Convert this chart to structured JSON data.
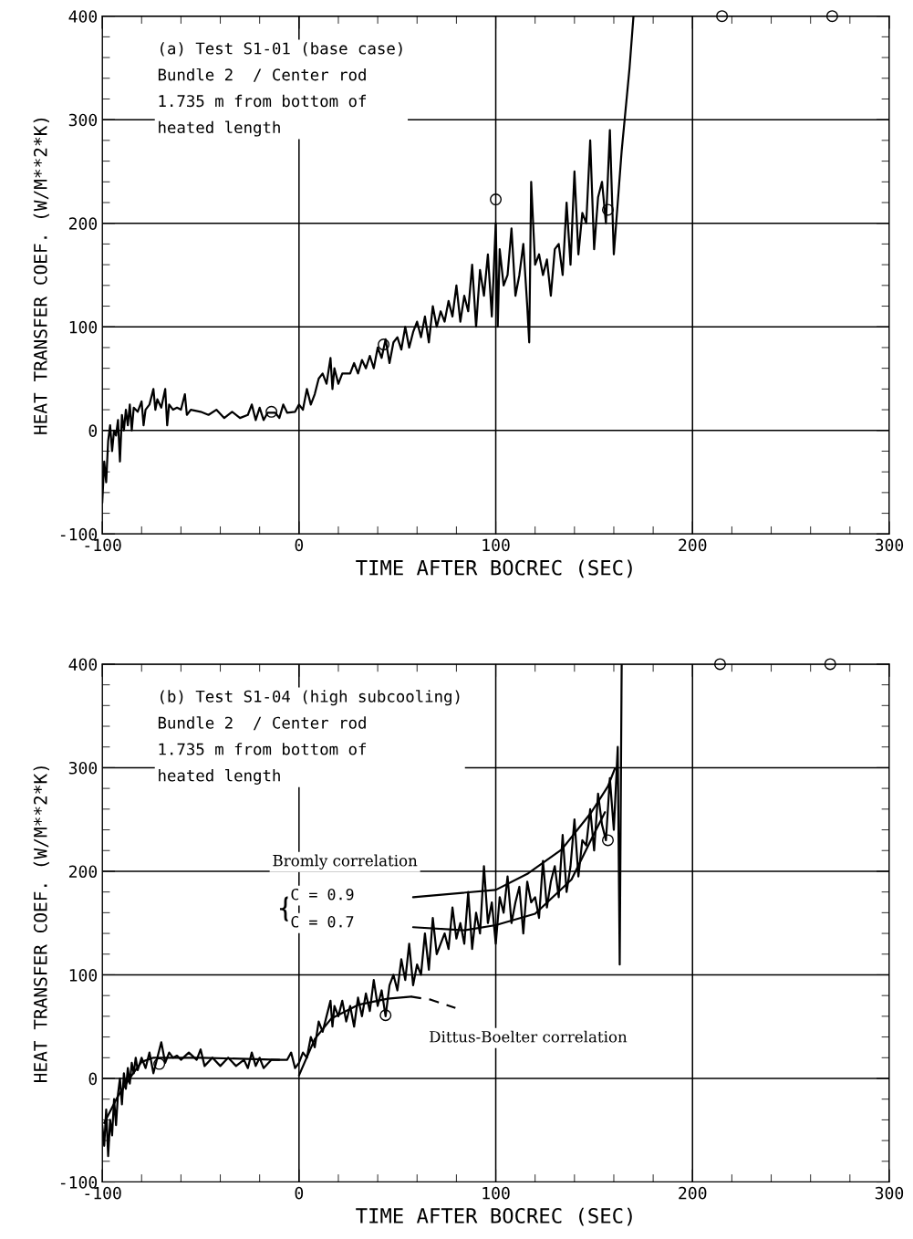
{
  "chart_data": [
    {
      "type": "line",
      "xlabel": "TIME AFTER BOCREC (SEC)",
      "ylabel": "HEAT TRANSFER COEF. (W/M**2*K)",
      "xlim": [
        -100,
        300
      ],
      "ylim": [
        -100,
        400
      ],
      "xticks": [
        {
          "value": -100,
          "label": "-100"
        },
        {
          "value": -80,
          "label": null
        },
        {
          "value": -60,
          "label": null
        },
        {
          "value": -40,
          "label": null
        },
        {
          "value": -20,
          "label": null
        },
        0,
        {
          "value": 20,
          "label": null
        },
        {
          "value": 40,
          "label": null
        },
        {
          "value": 60,
          "label": null
        },
        {
          "value": 80,
          "label": null
        },
        100,
        {
          "value": 120,
          "label": null
        },
        {
          "value": 140,
          "label": null
        },
        {
          "value": 160,
          "label": null
        },
        {
          "value": 180,
          "label": null
        },
        200,
        {
          "value": 220,
          "label": null
        },
        {
          "value": 240,
          "label": null
        },
        {
          "value": 260,
          "label": null
        },
        {
          "value": 280,
          "label": null
        },
        300
      ],
      "yticks": [
        {
          "value": -100,
          "label": "-100"
        },
        {
          "value": -80,
          "label": null
        },
        {
          "value": -60,
          "label": null
        },
        {
          "value": -40,
          "label": null
        },
        {
          "value": -20,
          "label": null
        },
        0,
        {
          "value": 20,
          "label": null
        },
        {
          "value": 40,
          "label": null
        },
        {
          "value": 60,
          "label": null
        },
        {
          "value": 80,
          "label": null
        },
        100,
        {
          "value": 120,
          "label": null
        },
        {
          "value": 140,
          "label": null
        },
        {
          "value": 160,
          "label": null
        },
        {
          "value": 180,
          "label": null
        },
        200,
        {
          "value": 220,
          "label": null
        },
        {
          "value": 240,
          "label": null
        },
        {
          "value": 260,
          "label": null
        },
        {
          "value": 280,
          "label": null
        },
        300,
        {
          "value": 320,
          "label": null
        },
        {
          "value": 340,
          "label": null
        },
        {
          "value": 360,
          "label": null
        },
        {
          "value": 380,
          "label": null
        },
        400
      ],
      "grid": true,
      "legend": false,
      "annotations": [
        "(a) Test S1-01 (base case)\nBundle 2  / Center rod\n1.735 m from bottom of\nheated length"
      ],
      "series": [
        {
          "color": "#000000",
          "line_style": "solid",
          "marker": "none",
          "x": [
            -100,
            -99,
            -98,
            -97,
            -96,
            -95,
            -94,
            -93,
            -92,
            -91,
            -90,
            -89,
            -88,
            -87,
            -86,
            -85,
            -84,
            -82,
            -80,
            -79,
            -78,
            -76,
            -74,
            -73,
            -72,
            -70,
            -68,
            -67,
            -66,
            -64,
            -62,
            -60,
            -58,
            -57,
            -55,
            -50,
            -46,
            -42,
            -38,
            -34,
            -30,
            -26,
            -24,
            -22,
            -20,
            -18,
            -16,
            -12,
            -10,
            -8,
            -6,
            -2,
            0,
            2,
            4,
            6,
            8,
            10,
            12,
            14,
            16,
            17,
            18,
            20,
            22,
            26,
            28,
            30,
            32,
            34,
            36,
            38,
            40,
            42,
            44,
            46,
            48,
            50,
            52,
            54,
            56,
            58,
            60,
            62,
            64,
            66,
            68,
            70,
            72,
            74,
            76,
            78,
            80,
            82,
            84,
            86,
            88,
            90,
            92,
            94,
            96,
            98,
            100,
            101,
            102,
            104,
            106,
            108,
            110,
            112,
            114,
            116,
            117,
            118,
            120,
            122,
            124,
            126,
            128,
            130,
            132,
            134,
            136,
            138,
            140,
            142,
            144,
            146,
            148,
            150,
            152,
            154,
            156,
            158,
            160,
            162,
            164,
            166,
            168,
            170
          ],
          "values": [
            -70,
            -30,
            -50,
            -10,
            5,
            -20,
            0,
            -5,
            10,
            -30,
            15,
            0,
            20,
            5,
            25,
            0,
            22,
            18,
            28,
            5,
            20,
            25,
            40,
            20,
            30,
            22,
            40,
            5,
            25,
            20,
            22,
            20,
            35,
            15,
            20,
            18,
            15,
            20,
            12,
            18,
            12,
            15,
            25,
            10,
            22,
            10,
            17,
            17,
            12,
            25,
            17,
            18,
            25,
            20,
            40,
            25,
            35,
            50,
            55,
            45,
            70,
            40,
            60,
            45,
            55,
            55,
            65,
            55,
            68,
            60,
            72,
            60,
            80,
            70,
            88,
            65,
            85,
            90,
            78,
            100,
            80,
            95,
            105,
            90,
            110,
            85,
            120,
            100,
            115,
            105,
            125,
            110,
            140,
            105,
            130,
            115,
            160,
            100,
            155,
            130,
            170,
            110,
            200,
            100,
            175,
            140,
            150,
            195,
            130,
            150,
            180,
            120,
            85,
            240,
            160,
            170,
            150,
            165,
            130,
            175,
            180,
            150,
            220,
            160,
            250,
            170,
            210,
            200,
            280,
            175,
            225,
            240,
            200,
            290,
            170,
            220,
            270,
            310,
            350,
            400
          ]
        },
        {
          "type": "scatter",
          "color": "#000000",
          "marker": "circle",
          "x": [
            -14,
            43,
            100,
            157
          ],
          "values": [
            18,
            83,
            223,
            213
          ]
        },
        {
          "type": "scatter",
          "color": "#000000",
          "marker": "circle",
          "x": [
            215,
            271
          ],
          "values": [
            400,
            400
          ]
        }
      ]
    },
    {
      "type": "line",
      "xlabel": "TIME AFTER BOCREC (SEC)",
      "ylabel": "HEAT TRANSFER COEF. (W/M**2*K)",
      "xlim": [
        -100,
        300
      ],
      "ylim": [
        -100,
        400
      ],
      "xticks": [
        {
          "value": -100,
          "label": "-100"
        },
        {
          "value": -80,
          "label": null
        },
        {
          "value": -60,
          "label": null
        },
        {
          "value": -40,
          "label": null
        },
        {
          "value": -20,
          "label": null
        },
        0,
        {
          "value": 20,
          "label": null
        },
        {
          "value": 40,
          "label": null
        },
        {
          "value": 60,
          "label": null
        },
        {
          "value": 80,
          "label": null
        },
        100,
        {
          "value": 120,
          "label": null
        },
        {
          "value": 140,
          "label": null
        },
        {
          "value": 160,
          "label": null
        },
        {
          "value": 180,
          "label": null
        },
        200,
        {
          "value": 220,
          "label": null
        },
        {
          "value": 240,
          "label": null
        },
        {
          "value": 260,
          "label": null
        },
        {
          "value": 280,
          "label": null
        },
        300
      ],
      "yticks": [
        {
          "value": -100,
          "label": "-100"
        },
        {
          "value": -80,
          "label": null
        },
        {
          "value": -60,
          "label": null
        },
        {
          "value": -40,
          "label": null
        },
        {
          "value": -20,
          "label": null
        },
        0,
        {
          "value": 20,
          "label": null
        },
        {
          "value": 40,
          "label": null
        },
        {
          "value": 60,
          "label": null
        },
        {
          "value": 80,
          "label": null
        },
        100,
        {
          "value": 120,
          "label": null
        },
        {
          "value": 140,
          "label": null
        },
        {
          "value": 160,
          "label": null
        },
        {
          "value": 180,
          "label": null
        },
        200,
        {
          "value": 220,
          "label": null
        },
        {
          "value": 240,
          "label": null
        },
        {
          "value": 260,
          "label": null
        },
        {
          "value": 280,
          "label": null
        },
        300,
        {
          "value": 320,
          "label": null
        },
        {
          "value": 340,
          "label": null
        },
        {
          "value": 360,
          "label": null
        },
        {
          "value": 380,
          "label": null
        },
        400
      ],
      "grid": true,
      "legend": false,
      "annotations": [
        "(b) Test S1-04 (high subcooling)\nBundle 2  / Center rod\n1.735 m from bottom of\nheated length",
        "Bromly correlation",
        "{",
        "C = 0.9",
        "C = 0.7",
        "Dittus-Boelter correlation"
      ],
      "series": [
        {
          "color": "#000000",
          "line_style": "solid",
          "marker": "none",
          "x": [
            -100,
            -99,
            -98,
            -97,
            -96,
            -95,
            -94,
            -93,
            -92,
            -91,
            -90,
            -89,
            -88,
            -87,
            -86,
            -85,
            -84,
            -83,
            -82,
            -80,
            -78,
            -76,
            -74,
            -72,
            -70,
            -68,
            -66,
            -64,
            -62,
            -60,
            -56,
            -52,
            -50,
            -48,
            -44,
            -40,
            -36,
            -32,
            -28,
            -26,
            -24,
            -22,
            -20,
            -18,
            -14,
            -10,
            -6,
            -4,
            -2,
            0,
            2,
            4,
            6,
            8,
            10,
            12,
            14,
            16,
            17,
            18,
            20,
            22,
            24,
            26,
            28,
            30,
            32,
            34,
            36,
            38,
            40,
            42,
            44,
            46,
            48,
            50,
            52,
            54,
            56,
            58,
            60,
            62,
            64,
            66,
            68,
            70,
            72,
            74,
            76,
            78,
            80,
            82,
            84,
            86,
            88,
            90,
            92,
            94,
            96,
            98,
            100,
            102,
            104,
            106,
            108,
            110,
            112,
            114,
            116,
            118,
            120,
            122,
            124,
            126,
            128,
            130,
            132,
            134,
            136,
            138,
            140,
            142,
            144,
            146,
            148,
            150,
            152,
            154,
            156,
            158,
            160,
            162,
            163,
            164
          ],
          "values": [
            -45,
            -65,
            -30,
            -75,
            -40,
            -55,
            -20,
            -45,
            -15,
            0,
            -25,
            5,
            -10,
            10,
            -5,
            15,
            5,
            20,
            8,
            20,
            10,
            25,
            5,
            20,
            35,
            15,
            25,
            20,
            22,
            18,
            25,
            18,
            28,
            12,
            20,
            12,
            20,
            12,
            18,
            10,
            25,
            12,
            20,
            10,
            18,
            18,
            18,
            25,
            10,
            15,
            25,
            20,
            40,
            30,
            55,
            45,
            60,
            75,
            50,
            70,
            60,
            75,
            55,
            70,
            50,
            78,
            60,
            82,
            65,
            95,
            70,
            85,
            60,
            90,
            100,
            85,
            115,
            95,
            130,
            90,
            110,
            100,
            140,
            105,
            155,
            120,
            130,
            140,
            125,
            165,
            135,
            150,
            130,
            180,
            125,
            160,
            140,
            205,
            150,
            170,
            130,
            175,
            160,
            195,
            150,
            170,
            185,
            140,
            190,
            170,
            175,
            155,
            210,
            165,
            190,
            205,
            175,
            235,
            180,
            205,
            250,
            195,
            230,
            225,
            260,
            220,
            275,
            245,
            230,
            290,
            240,
            320,
            110,
            400
          ]
        },
        {
          "type": "line",
          "color": "#000000",
          "line_style": "solid",
          "marker": "none",
          "x": [
            -99,
            -92,
            -85,
            -80,
            -74,
            -50,
            -10
          ],
          "values": [
            -43,
            -17,
            3,
            16,
            20,
            20,
            18
          ]
        },
        {
          "type": "line",
          "color": "#000000",
          "line_style": "solid",
          "marker": "none",
          "x": [
            0,
            8,
            16.5,
            30,
            45,
            57
          ],
          "values": [
            3,
            38,
            58,
            71,
            77,
            79
          ]
        },
        {
          "type": "line",
          "color": "#000000",
          "line_style": "dashed",
          "marker": "none",
          "x": [
            57,
            67,
            79.5
          ],
          "values": [
            79,
            76,
            68
          ]
        },
        {
          "type": "line",
          "color": "#000000",
          "line_style": "solid",
          "marker": "none",
          "x": [
            58,
            100,
            116.5,
            133.5,
            148.6,
            157,
            160.5
          ],
          "values": [
            175,
            182,
            198,
            221,
            257,
            282,
            299
          ]
        },
        {
          "type": "line",
          "color": "#000000",
          "line_style": "solid",
          "marker": "none",
          "x": [
            58,
            84,
            100,
            120,
            138.5,
            148.6,
            155.5
          ],
          "values": [
            146,
            143,
            148,
            159,
            192,
            231,
            257
          ]
        },
        {
          "type": "scatter",
          "color": "#000000",
          "marker": "circle",
          "x": [
            -71,
            44,
            157
          ],
          "values": [
            14,
            61,
            230
          ]
        },
        {
          "type": "scatter",
          "color": "#000000",
          "marker": "circle",
          "x": [
            214,
            270
          ],
          "values": [
            400,
            400
          ]
        }
      ]
    }
  ]
}
